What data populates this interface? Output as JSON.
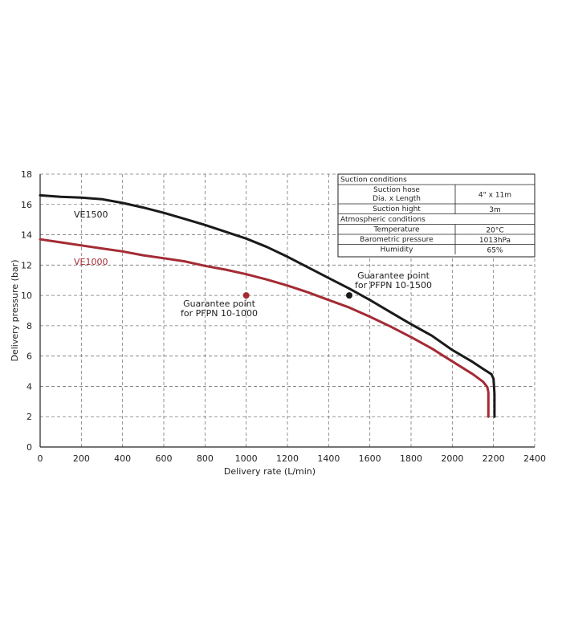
{
  "chart_data": {
    "type": "line",
    "title": "",
    "xlabel": "Delivery rate (L/min)",
    "ylabel": "Delivery pressure (bar)",
    "xlim": [
      0,
      2400
    ],
    "ylim": [
      0,
      18
    ],
    "xticks": [
      0,
      200,
      400,
      600,
      800,
      1000,
      1200,
      1400,
      1600,
      1800,
      2000,
      2200,
      2400
    ],
    "yticks": [
      0,
      2,
      4,
      6,
      8,
      10,
      12,
      14,
      16,
      18
    ],
    "grid": true,
    "series": [
      {
        "name": "VE1500",
        "color": "#1a1a1a",
        "x": [
          0,
          100,
          200,
          300,
          400,
          500,
          600,
          700,
          800,
          900,
          1000,
          1100,
          1200,
          1300,
          1400,
          1500,
          1600,
          1700,
          1800,
          1900,
          2000,
          2100,
          2150,
          2190,
          2200,
          2205,
          2205
        ],
        "y": [
          16.6,
          16.5,
          16.45,
          16.35,
          16.1,
          15.8,
          15.45,
          15.05,
          14.65,
          14.2,
          13.75,
          13.2,
          12.55,
          11.85,
          11.15,
          10.45,
          9.7,
          8.9,
          8.1,
          7.35,
          6.4,
          5.6,
          5.15,
          4.8,
          4.5,
          3.5,
          2.0
        ]
      },
      {
        "name": "VE1000",
        "color": "#a42b34",
        "x": [
          0,
          100,
          200,
          300,
          400,
          500,
          600,
          700,
          800,
          900,
          1000,
          1100,
          1200,
          1300,
          1400,
          1500,
          1600,
          1700,
          1800,
          1900,
          2000,
          2100,
          2150,
          2170,
          2175,
          2175
        ],
        "y": [
          13.7,
          13.5,
          13.3,
          13.1,
          12.9,
          12.65,
          12.45,
          12.25,
          11.95,
          11.7,
          11.4,
          11.05,
          10.65,
          10.2,
          9.7,
          9.2,
          8.6,
          7.95,
          7.25,
          6.5,
          5.65,
          4.8,
          4.3,
          3.95,
          3.6,
          2.0
        ]
      }
    ],
    "points": [
      {
        "x": 1000,
        "y": 10,
        "color": "#a42b34",
        "label_lines": [
          "Guarantee point",
          "for PFPN 10-1000"
        ]
      },
      {
        "x": 1500,
        "y": 10,
        "color": "#1a1a1a",
        "label_lines": [
          "Guarantee point",
          "for PFPN 10-1500"
        ]
      }
    ],
    "series_labels": [
      {
        "text": "VE1500",
        "color": "#1a1a1a"
      },
      {
        "text": "VE1000",
        "color": "#a42b34"
      }
    ]
  },
  "conditions_table": {
    "rows": [
      {
        "type": "header",
        "text": "Suction conditions"
      },
      {
        "type": "row",
        "label": "Suction hose\nDia. x Length",
        "value": "4\" x 11m"
      },
      {
        "type": "row",
        "label": "Suction hight",
        "value": "3m"
      },
      {
        "type": "header",
        "text": "Atmospheric conditions"
      },
      {
        "type": "row",
        "label": "Temperature",
        "value": "20°C"
      },
      {
        "type": "row",
        "label": "Barometric pressure",
        "value": "1013hPa"
      },
      {
        "type": "row",
        "label": "Humidity",
        "value": "65%"
      }
    ]
  }
}
